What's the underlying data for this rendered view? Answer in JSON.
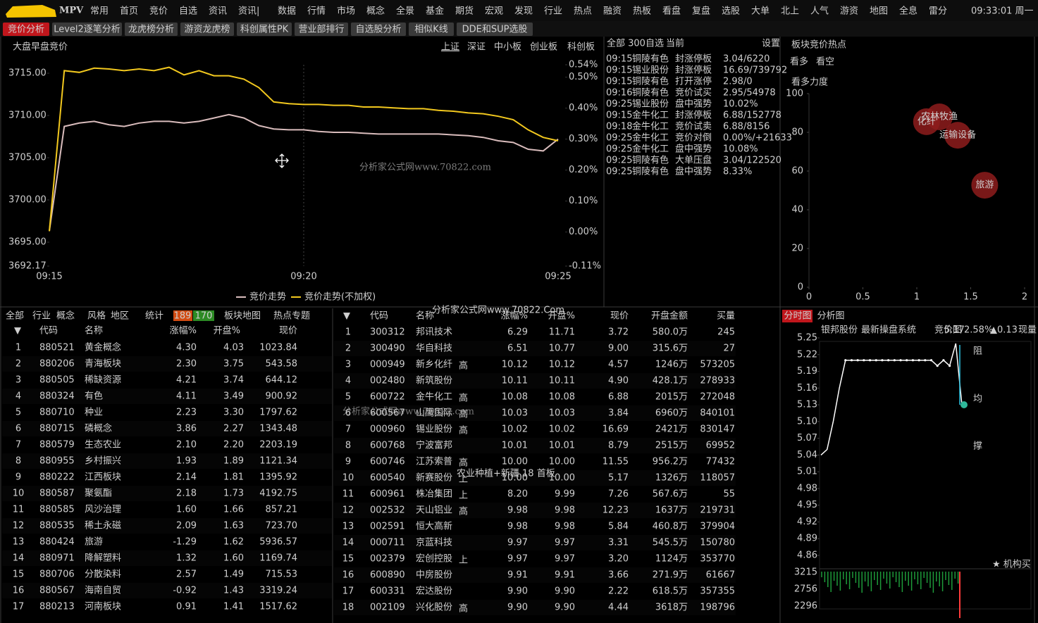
{
  "menu": {
    "logo": "MPV",
    "items": [
      "常用",
      "首页",
      "竞价",
      "自选",
      "资讯",
      "资讯|",
      "数据",
      "行情",
      "市场",
      "概念",
      "全景",
      "基金",
      "期货",
      "宏观",
      "发现",
      "行业",
      "热点",
      "融资",
      "热板",
      "看盘",
      "复盘",
      "选股",
      "大单",
      "北上",
      "人气",
      "游资",
      "地图",
      "全息",
      "雷分"
    ],
    "active": "竞价",
    "clock": "09:33:01 周一"
  },
  "tabs": [
    "竞价分析",
    "Level2逐笔分析",
    "龙虎榜分析",
    "游资龙虎榜",
    "科创属性PK",
    "营业部排行",
    "自选股分析",
    "相似K线",
    "DDE和SUP选股"
  ],
  "index_panel": {
    "title": "大盘早盘竞价",
    "markets": [
      "上证",
      "深证",
      "中小板",
      "创业板",
      "科创板"
    ],
    "ylim": [
      3692.17,
      3716.0
    ],
    "yticks": [
      {
        "value": 3715,
        "label": "3715.00"
      },
      {
        "value": 3710,
        "label": "3710.00"
      },
      {
        "value": 3705,
        "label": "3705.00"
      },
      {
        "value": 3700,
        "label": "3700.00"
      },
      {
        "value": 3695,
        "label": "3695.00"
      },
      {
        "value": 3692.17,
        "label": "3692.17"
      }
    ],
    "y2lim": [
      -0.11,
      0.54
    ],
    "y2ticks": [
      {
        "value": 0.54,
        "label": "0.54%"
      },
      {
        "value": 0.5,
        "label": "0.50%"
      },
      {
        "value": 0.4,
        "label": "0.40%"
      },
      {
        "value": 0.3,
        "label": "0.30%"
      },
      {
        "value": 0.2,
        "label": "0.20%"
      },
      {
        "value": 0.1,
        "label": "0.10%"
      },
      {
        "value": 0,
        "label": "0.00%"
      },
      {
        "value": -0.11,
        "label": "-0.11%"
      }
    ],
    "xticks": [
      "09:15",
      "09:20",
      "09:25"
    ],
    "series": [
      {
        "name": "竞价走势",
        "color": "#d9bcbc",
        "values": [
          3696.3,
          3708.7,
          3709.1,
          3709.3,
          3708.9,
          3708.7,
          3709.1,
          3709.3,
          3709.3,
          3709.1,
          3709.3,
          3709.7,
          3710.1,
          3709.7,
          3708.8,
          3708.4,
          3708.3,
          3708.3,
          3708.1,
          3708.0,
          3708.0,
          3707.9,
          3707.8,
          3707.8,
          3707.8,
          3707.8,
          3707.8,
          3707.7,
          3707.6,
          3707.4,
          3707.0,
          3706.8,
          3706.0,
          3705.8,
          3707.2
        ]
      },
      {
        "name": "竞价走势(不加权)",
        "color": "#f2c81e",
        "values": [
          3696.3,
          3715.3,
          3715.1,
          3715.6,
          3715.5,
          3715.3,
          3715.5,
          3715.3,
          3715.7,
          3714.8,
          3715.3,
          3714.7,
          3714.7,
          3714.3,
          3713.3,
          3711.6,
          3711.4,
          3711.3,
          3711.3,
          3711.2,
          3711.2,
          3711.0,
          3711.0,
          3710.9,
          3710.8,
          3710.8,
          3710.6,
          3710.5,
          3710.3,
          3710.2,
          3709.9,
          3709.5,
          3708.3,
          3707.4,
          3707.0
        ]
      }
    ],
    "watermark": "分析家公式网www.70822.com"
  },
  "alerts": {
    "header": [
      "全部 300",
      "自选",
      "当前"
    ],
    "settings": "设置",
    "rows": [
      {
        "time": "09:15",
        "name": "铜陵有色",
        "event": "封涨停板",
        "value": "3.04/6220",
        "color": "#ff3b3b"
      },
      {
        "time": "09:15",
        "name": "锡业股份",
        "event": "封涨停板",
        "value": "16.69/739792",
        "color": "#ff3b3b"
      },
      {
        "time": "09:15",
        "name": "铜陵有色",
        "event": "打开涨停",
        "value": "2.98/0",
        "color": "#22cc44"
      },
      {
        "time": "09:16",
        "name": "铜陵有色",
        "event": "竞价试买",
        "value": "2.95/54978",
        "color": "#ff3b3b"
      },
      {
        "time": "09:25",
        "name": "锡业股份",
        "event": "盘中强势",
        "value": "10.02%",
        "color": "#ff3b3b"
      },
      {
        "time": "09:15",
        "name": "金牛化工",
        "event": "封涨停板",
        "value": "6.88/152778",
        "color": "#ff3b3b"
      },
      {
        "time": "09:18",
        "name": "金牛化工",
        "event": "竞价试卖",
        "value": "6.88/8156",
        "color": "#22cc44"
      },
      {
        "time": "09:25",
        "name": "金牛化工",
        "event": "竞价对倒",
        "value": "0.00%/+21633",
        "color": "#dddddd"
      },
      {
        "time": "09:25",
        "name": "金牛化工",
        "event": "盘中强势",
        "value": "10.08%",
        "color": "#ff3b3b"
      },
      {
        "time": "09:25",
        "name": "铜陵有色",
        "event": "大单压盘",
        "value": "3.04/122520",
        "color": "#22cc44"
      },
      {
        "time": "09:25",
        "name": "铜陵有色",
        "event": "盘中强势",
        "value": "8.33%",
        "color": "#ff3b3b"
      }
    ]
  },
  "hot_panel": {
    "title": "板块竞价热点",
    "tabs": [
      "看多",
      "看空"
    ],
    "subtitle": "看多力度",
    "chart_data": {
      "type": "scatter",
      "xlim": [
        0,
        2
      ],
      "ylim": [
        0,
        100
      ],
      "xticks": [
        0,
        0.5,
        1,
        1.5,
        2
      ],
      "yticks": [
        0,
        20,
        40,
        60,
        80,
        100
      ],
      "color": "#8e1c1c",
      "points": [
        {
          "name": "农林牧渔",
          "x": 1.21,
          "y": 88
        },
        {
          "name": "化纤",
          "x": 1.09,
          "y": 85.5
        },
        {
          "name": "运输设备",
          "x": 1.38,
          "y": 78.5
        },
        {
          "name": "旅游",
          "x": 1.63,
          "y": 52.7
        }
      ]
    }
  },
  "sector_table": {
    "tabs": [
      "全部",
      "行业",
      "概念",
      "风格",
      "地区",
      "统计"
    ],
    "badges": [
      189,
      170
    ],
    "links": [
      "板块地图",
      "热点专题"
    ],
    "columns": [
      "代码",
      "名称",
      "涨幅%",
      "开盘%",
      "现价"
    ],
    "rows": [
      [
        "1",
        "880521",
        "黄金概念",
        "4.30",
        "4.03",
        "1023.84"
      ],
      [
        "2",
        "880206",
        "青海板块",
        "2.30",
        "3.75",
        "543.58"
      ],
      [
        "3",
        "880505",
        "稀缺资源",
        "4.21",
        "3.74",
        "644.12"
      ],
      [
        "4",
        "880324",
        "有色",
        "4.11",
        "3.49",
        "900.92"
      ],
      [
        "5",
        "880710",
        "种业",
        "2.23",
        "3.30",
        "1797.62"
      ],
      [
        "6",
        "880715",
        "磷概念",
        "3.86",
        "2.27",
        "1343.48"
      ],
      [
        "7",
        "880579",
        "生态农业",
        "2.10",
        "2.20",
        "2203.19"
      ],
      [
        "8",
        "880955",
        "乡村振兴",
        "1.93",
        "1.89",
        "1121.34"
      ],
      [
        "9",
        "880222",
        "江西板块",
        "2.14",
        "1.81",
        "1395.92"
      ],
      [
        "10",
        "880587",
        "聚氨酯",
        "2.18",
        "1.73",
        "4192.75"
      ],
      [
        "11",
        "880585",
        "风沙治理",
        "1.60",
        "1.66",
        "857.21"
      ],
      [
        "12",
        "880535",
        "稀土永磁",
        "2.09",
        "1.63",
        "723.70"
      ],
      [
        "13",
        "880424",
        "旅游",
        "-1.29",
        "1.62",
        "5936.57"
      ],
      [
        "14",
        "880971",
        "降解塑料",
        "1.32",
        "1.60",
        "1169.74"
      ],
      [
        "15",
        "880706",
        "分散染料",
        "2.57",
        "1.49",
        "715.53"
      ],
      [
        "16",
        "880567",
        "海南自贸",
        "-0.92",
        "1.43",
        "3319.24"
      ],
      [
        "17",
        "880213",
        "河南板块",
        "0.91",
        "1.41",
        "1517.62"
      ]
    ]
  },
  "stock_table": {
    "columns": [
      "代码",
      "名称",
      "涨幅%",
      "开盘%",
      "现价",
      "开盘金额",
      "买量"
    ],
    "watermark": "分析家公式网www.70822.Com",
    "annotation": "农业种植+新疆 18 首板",
    "rows": [
      {
        "no": "1",
        "code": "300312",
        "name": "邦讯技术",
        "chg": "6.29",
        "open": "11.71",
        "price": "3.72",
        "amount": "580.0万",
        "vol": "245"
      },
      {
        "no": "2",
        "code": "300490",
        "name": "华自科技",
        "chg": "6.51",
        "open": "10.77",
        "price": "9.00",
        "amount": "315.6万",
        "vol": "27"
      },
      {
        "no": "3",
        "code": "000949",
        "name": "新乡化纤",
        "tag": "高",
        "chg": "10.12",
        "open": "10.12",
        "price": "4.57",
        "amount": "1246万",
        "vol": "573205"
      },
      {
        "no": "4",
        "code": "002480",
        "name": "新筑股份",
        "chg": "10.11",
        "open": "10.11",
        "price": "4.90",
        "amount": "428.1万",
        "vol": "278933"
      },
      {
        "no": "5",
        "code": "600722",
        "name": "金牛化工",
        "tag": "高",
        "color": "#2ec6e6",
        "chg": "10.08",
        "open": "10.08",
        "price": "6.88",
        "amount": "2015万",
        "vol": "272048"
      },
      {
        "no": "6",
        "code": "600567",
        "name": "山鹰国际",
        "tag": "高",
        "chg": "10.03",
        "open": "10.03",
        "price": "3.84",
        "amount": "6960万",
        "vol": "840101"
      },
      {
        "no": "7",
        "code": "000960",
        "name": "锡业股份",
        "tag": "高",
        "color": "#2ec6e6",
        "chg": "10.02",
        "open": "10.02",
        "price": "16.69",
        "amount": "2421万",
        "vol": "830147"
      },
      {
        "no": "8",
        "code": "600768",
        "name": "宁波富邦",
        "chg": "10.01",
        "open": "10.01",
        "price": "8.79",
        "amount": "2515万",
        "vol": "69952"
      },
      {
        "no": "9",
        "code": "600746",
        "name": "江苏索普",
        "tag": "高",
        "chg": "10.00",
        "open": "10.00",
        "price": "11.55",
        "amount": "956.2万",
        "vol": "77432"
      },
      {
        "no": "10",
        "code": "600540",
        "name": "新赛股份",
        "tag": "上",
        "chg": "10.00",
        "open": "10.00",
        "price": "5.17",
        "amount": "1326万",
        "vol": "118057"
      },
      {
        "no": "11",
        "code": "600961",
        "name": "株冶集团",
        "tag": "上",
        "chg": "8.20",
        "open": "9.99",
        "price": "7.26",
        "amount": "567.6万",
        "vol": "55"
      },
      {
        "no": "12",
        "code": "002532",
        "name": "天山铝业",
        "tag": "高",
        "chg": "9.98",
        "open": "9.98",
        "price": "12.23",
        "amount": "1637万",
        "vol": "219731"
      },
      {
        "no": "13",
        "code": "002591",
        "name": "恒大高新",
        "chg": "9.98",
        "open": "9.98",
        "price": "5.84",
        "amount": "460.8万",
        "vol": "379904"
      },
      {
        "no": "14",
        "code": "000711",
        "name": "京蓝科技",
        "chg": "9.97",
        "open": "9.97",
        "price": "3.31",
        "amount": "545.5万",
        "vol": "150780"
      },
      {
        "no": "15",
        "code": "002379",
        "name": "宏创控股",
        "tag": "上",
        "chg": "9.97",
        "open": "9.97",
        "price": "3.20",
        "amount": "1124万",
        "vol": "353770"
      },
      {
        "no": "16",
        "code": "600890",
        "name": "中房股份",
        "chg": "9.91",
        "open": "9.91",
        "price": "3.66",
        "amount": "271.9万",
        "vol": "61667"
      },
      {
        "no": "17",
        "code": "600331",
        "name": "宏达股份",
        "chg": "9.90",
        "open": "9.90",
        "price": "2.22",
        "amount": "618.5万",
        "vol": "357355"
      },
      {
        "no": "18",
        "code": "002109",
        "name": "兴化股份",
        "tag": "高",
        "chg": "9.90",
        "open": "9.90",
        "price": "4.44",
        "amount": "3618万",
        "vol": "198796"
      }
    ]
  },
  "intraday": {
    "tabs": [
      "分时图",
      "分析图"
    ],
    "stock": "银邦股份",
    "system": "最新操盘系统",
    "chart": "竞价图",
    "price": "5.17",
    "pct": "2.58%",
    "change": "▲0.13",
    "extra": "现量",
    "ylim": [
      4.86,
      5.25
    ],
    "yticks": [
      5.25,
      5.22,
      5.19,
      5.16,
      5.13,
      {
        "value": 5.1,
        "label": "5.10"
      },
      5.07,
      5.04,
      5.01,
      4.98,
      4.95,
      4.92,
      4.89,
      4.86
    ],
    "vol_ticks": [
      3215,
      2756,
      2296
    ],
    "line": {
      "color": "#ffffff",
      "values": [
        5.04,
        5.05,
        5.1,
        5.16,
        5.21,
        5.21,
        5.21,
        5.21,
        5.21,
        5.21,
        5.21,
        5.21,
        5.21,
        5.21,
        5.21,
        5.21,
        5.21,
        5.21,
        5.21,
        5.2,
        5.21,
        5.2,
        5.24,
        5.13
      ]
    },
    "marks": [
      "阻",
      "均",
      "撑"
    ],
    "note": "★ 机构买"
  }
}
